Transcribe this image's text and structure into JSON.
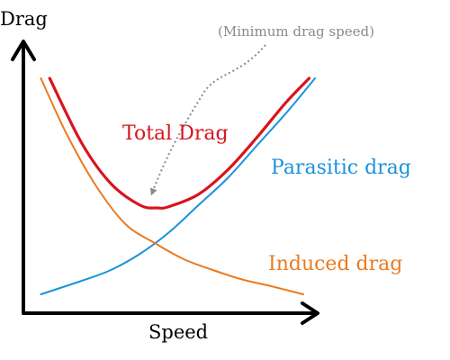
{
  "chart_data": {
    "type": "line",
    "title": "",
    "xlabel": "Speed",
    "ylabel": "Drag",
    "axes_arrows": true,
    "ticks": false,
    "grid": false,
    "legend": "none",
    "xlim": [
      0,
      10
    ],
    "ylim": [
      0,
      10
    ],
    "series": [
      {
        "name": "Total Drag",
        "color": "#d9141e",
        "x": [
          0.9,
          2.0,
          3.0,
          4.0,
          4.6,
          5.0,
          6.0,
          7.0,
          8.0,
          9.0,
          9.8
        ],
        "y": [
          8.7,
          6.3,
          4.8,
          4.0,
          3.9,
          3.95,
          4.4,
          5.3,
          6.5,
          7.8,
          8.7
        ]
      },
      {
        "name": "Parasitic drag",
        "color": "#1a92de",
        "x": [
          0.6,
          2.0,
          3.0,
          4.0,
          5.0,
          6.0,
          7.0,
          8.0,
          9.0,
          10.0
        ],
        "y": [
          0.7,
          1.2,
          1.6,
          2.2,
          3.0,
          4.0,
          5.0,
          6.2,
          7.4,
          8.7
        ]
      },
      {
        "name": "Induced drag",
        "color": "#ec7a1e",
        "x": [
          0.6,
          1.5,
          2.5,
          3.5,
          4.5,
          5.5,
          6.5,
          7.5,
          8.5,
          9.6
        ],
        "y": [
          8.7,
          6.6,
          4.7,
          3.3,
          2.6,
          2.0,
          1.6,
          1.25,
          1.0,
          0.7
        ]
      }
    ],
    "annotations": [
      {
        "text": "(Minimum drag speed)",
        "color": "#8a8a8a",
        "arrow_to_x": 4.4,
        "arrow_to_y": 4.15,
        "style": "dotted"
      }
    ]
  }
}
